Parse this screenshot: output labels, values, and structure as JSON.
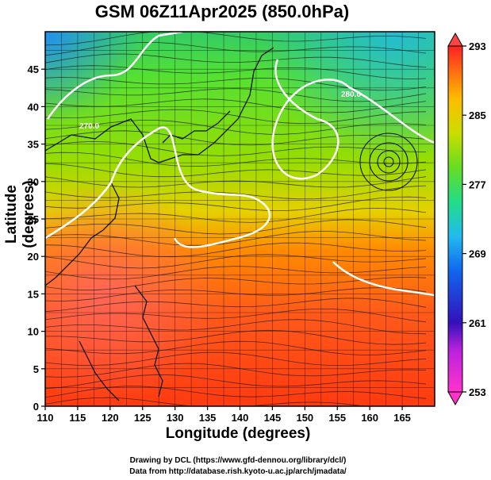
{
  "title": "GSM 06Z11Apr2025 (850.0hPa)",
  "x_axis": {
    "label": "Longitude (degrees)",
    "ticks": [
      "110",
      "115",
      "120",
      "125",
      "130",
      "135",
      "140",
      "145",
      "150",
      "155",
      "160",
      "165"
    ],
    "range": [
      110,
      170
    ]
  },
  "y_axis": {
    "label": "Latitude  (degrees)",
    "ticks": [
      "0",
      "5",
      "10",
      "15",
      "20",
      "25",
      "30",
      "35",
      "40",
      "45"
    ],
    "range": [
      0,
      50
    ]
  },
  "colorbar": {
    "ticks": [
      "253",
      "261",
      "269",
      "277",
      "285",
      "293"
    ],
    "range": [
      253,
      293
    ]
  },
  "contour_labels": [
    "280.0",
    "270.0"
  ],
  "credits": {
    "line1": "Drawing by DCL (https://www.gfd-dennou.org/library/dcl/)",
    "line2": "Data from http://database.rish.kyoto-u.ac.jp/arch/jmadata/"
  }
}
